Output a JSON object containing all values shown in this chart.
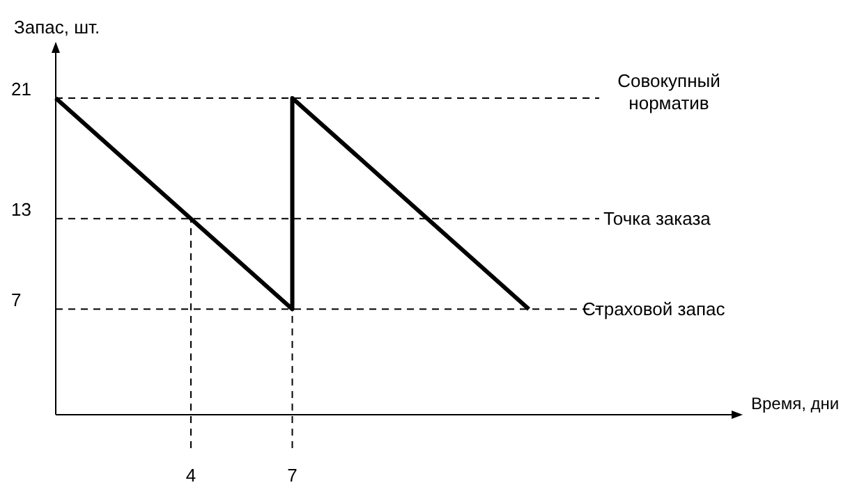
{
  "chart_data": {
    "type": "line",
    "xlabel": "Время, дни",
    "ylabel": "Запас, шт.",
    "x": [
      0,
      7,
      7,
      14
    ],
    "series": [
      {
        "color": "#000000",
        "values": [
          21,
          7,
          21,
          7
        ]
      }
    ],
    "xlim": [
      0,
      20
    ],
    "ylim": [
      0,
      24
    ],
    "xticks": [
      4,
      7
    ],
    "yticks": [
      7,
      13,
      21
    ],
    "grid": false,
    "marker": "none",
    "line_style": "solid",
    "ref_lines": [
      {
        "axis": "y",
        "value": 21,
        "label": "Совокупный норматив",
        "line_style": "dashed"
      },
      {
        "axis": "y",
        "value": 13,
        "label": "Точка заказа",
        "line_style": "dashed"
      },
      {
        "axis": "y",
        "value": 7,
        "label": "Страховой запас",
        "line_style": "dashed"
      },
      {
        "axis": "x",
        "value": 4,
        "line_style": "dashed"
      },
      {
        "axis": "x",
        "value": 7,
        "line_style": "dashed"
      }
    ]
  }
}
